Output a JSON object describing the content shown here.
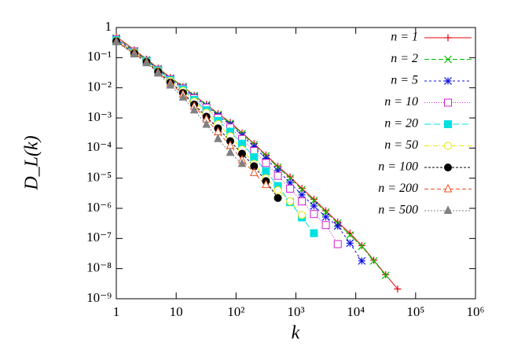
{
  "chart_data": {
    "type": "line",
    "xlabel": "k",
    "ylabel": "D_L(k)",
    "xscale": "log",
    "yscale": "log",
    "xlim": [
      1,
      1000000
    ],
    "ylim": [
      1e-09,
      1
    ],
    "xticks": [
      1,
      10,
      {
        "value": 100,
        "label": "10²"
      },
      {
        "value": 1000,
        "label": "10³"
      },
      {
        "value": 10000,
        "label": "10⁴"
      },
      {
        "value": 100000,
        "label": "10⁵"
      },
      {
        "value": 1000000,
        "label": "10⁶"
      }
    ],
    "yticks": [
      {
        "value": 1e-09,
        "label": "10⁻⁹"
      },
      {
        "value": 1e-08,
        "label": "10⁻⁸"
      },
      {
        "value": 1e-07,
        "label": "10⁻⁷"
      },
      {
        "value": 1e-06,
        "label": "10⁻⁶"
      },
      {
        "value": 1e-05,
        "label": "10⁻⁵"
      },
      {
        "value": 0.0001,
        "label": "10⁻⁴"
      },
      {
        "value": 0.001,
        "label": "10⁻³"
      },
      {
        "value": 0.01,
        "label": "10⁻²"
      },
      {
        "value": 0.1,
        "label": "10⁻¹"
      },
      1
    ],
    "legend_position": "upper right",
    "x": [
      1,
      2,
      3.2,
      5,
      8,
      13,
      20,
      32,
      50,
      80,
      126,
      200,
      316,
      500,
      800,
      1260,
      2000,
      3160,
      5000,
      8000,
      12600,
      20000,
      31600,
      50000
    ],
    "series": [
      {
        "name": "n = 1",
        "color": "#e8000b",
        "marker": "plus",
        "dash": "",
        "values": [
          0.5,
          0.18,
          0.089,
          0.045,
          0.022,
          0.011,
          0.0056,
          0.0028,
          0.0014,
          0.00071,
          0.00032,
          0.00014,
          5.9e-05,
          2.5e-05,
          1.1e-05,
          4.6e-06,
          2e-06,
          8.3e-07,
          3.5e-07,
          1.5e-07,
          5.8e-08,
          1.9e-08,
          6.3e-09,
          2.1e-09
        ]
      },
      {
        "name": "n = 2",
        "color": "#00c000",
        "marker": "cross",
        "dash": "6 3",
        "values": [
          0.45,
          0.17,
          0.085,
          0.043,
          0.021,
          0.011,
          0.0055,
          0.0027,
          0.0013,
          0.00066,
          0.0003,
          0.00013,
          5.5e-05,
          2.3e-05,
          1e-05,
          4.2e-06,
          1.8e-06,
          7.5e-07,
          3.2e-07,
          1.3e-07,
          5.5e-08,
          1.8e-08,
          6e-09,
          null
        ]
      },
      {
        "name": "n = 5",
        "color": "#1010e0",
        "marker": "star",
        "dash": "3 3",
        "values": [
          0.42,
          0.16,
          0.082,
          0.041,
          0.02,
          0.01,
          0.005,
          0.0025,
          0.0012,
          0.0006,
          0.00026,
          0.00011,
          4.5e-05,
          1.8e-05,
          7e-06,
          2.8e-06,
          1.2e-06,
          5.2e-07,
          2.6e-07,
          7e-08,
          1.8e-08,
          null,
          null,
          null
        ]
      },
      {
        "name": "n = 10",
        "color": "#d020d0",
        "marker": "square-open",
        "dash": "1 2",
        "values": [
          0.4,
          0.16,
          0.08,
          0.04,
          0.019,
          0.0095,
          0.0045,
          0.0022,
          0.001,
          0.00048,
          0.0002,
          8e-05,
          3.2e-05,
          1.2e-05,
          4.5e-06,
          1.7e-06,
          6.5e-07,
          2.8e-07,
          6.5e-08,
          null,
          null,
          null,
          null,
          null
        ]
      },
      {
        "name": "n = 20",
        "color": "#00e0e0",
        "marker": "square",
        "dash": "8 4",
        "values": [
          0.38,
          0.15,
          0.078,
          0.038,
          0.018,
          0.0088,
          0.004,
          0.0018,
          0.0008,
          0.00035,
          0.00014,
          5e-05,
          1.7e-05,
          5.5e-06,
          1.6e-06,
          5e-07,
          1.5e-07,
          null,
          null,
          null,
          null,
          null,
          null,
          null
        ]
      },
      {
        "name": "n = 50",
        "color": "#e8e800",
        "marker": "circle-open",
        "dash": "6 2 1 2",
        "values": [
          0.36,
          0.15,
          0.075,
          0.036,
          0.017,
          0.008,
          0.0035,
          0.0015,
          0.00063,
          0.00025,
          9e-05,
          3e-05,
          1e-05,
          4e-06,
          1.7e-06,
          6e-07,
          null,
          null,
          null,
          null,
          null,
          null,
          null,
          null
        ]
      },
      {
        "name": "n = 100",
        "color": "#000000",
        "marker": "circle",
        "dash": "3 2",
        "values": [
          0.35,
          0.14,
          0.072,
          0.034,
          0.015,
          0.0068,
          0.0028,
          0.0011,
          0.00045,
          0.00017,
          6.5e-05,
          2.5e-05,
          8e-06,
          2.2e-06,
          null,
          null,
          null,
          null,
          null,
          null,
          null,
          null,
          null,
          null
        ]
      },
      {
        "name": "n = 200",
        "color": "#f05020",
        "marker": "triangle-open",
        "dash": "5 3",
        "values": [
          0.34,
          0.14,
          0.07,
          0.032,
          0.014,
          0.006,
          0.0024,
          0.0009,
          0.00034,
          0.00012,
          4e-05,
          1.5e-05,
          6e-06,
          null,
          null,
          null,
          null,
          null,
          null,
          null,
          null,
          null,
          null,
          null
        ]
      },
      {
        "name": "n = 500",
        "color": "#808080",
        "marker": "triangle",
        "dash": "2 2",
        "values": [
          0.33,
          0.13,
          0.066,
          0.03,
          0.012,
          0.0048,
          0.0018,
          0.0006,
          0.0002,
          7e-05,
          3e-05,
          null,
          null,
          null,
          null,
          null,
          null,
          null,
          null,
          null,
          null,
          null,
          null,
          null
        ]
      }
    ]
  }
}
